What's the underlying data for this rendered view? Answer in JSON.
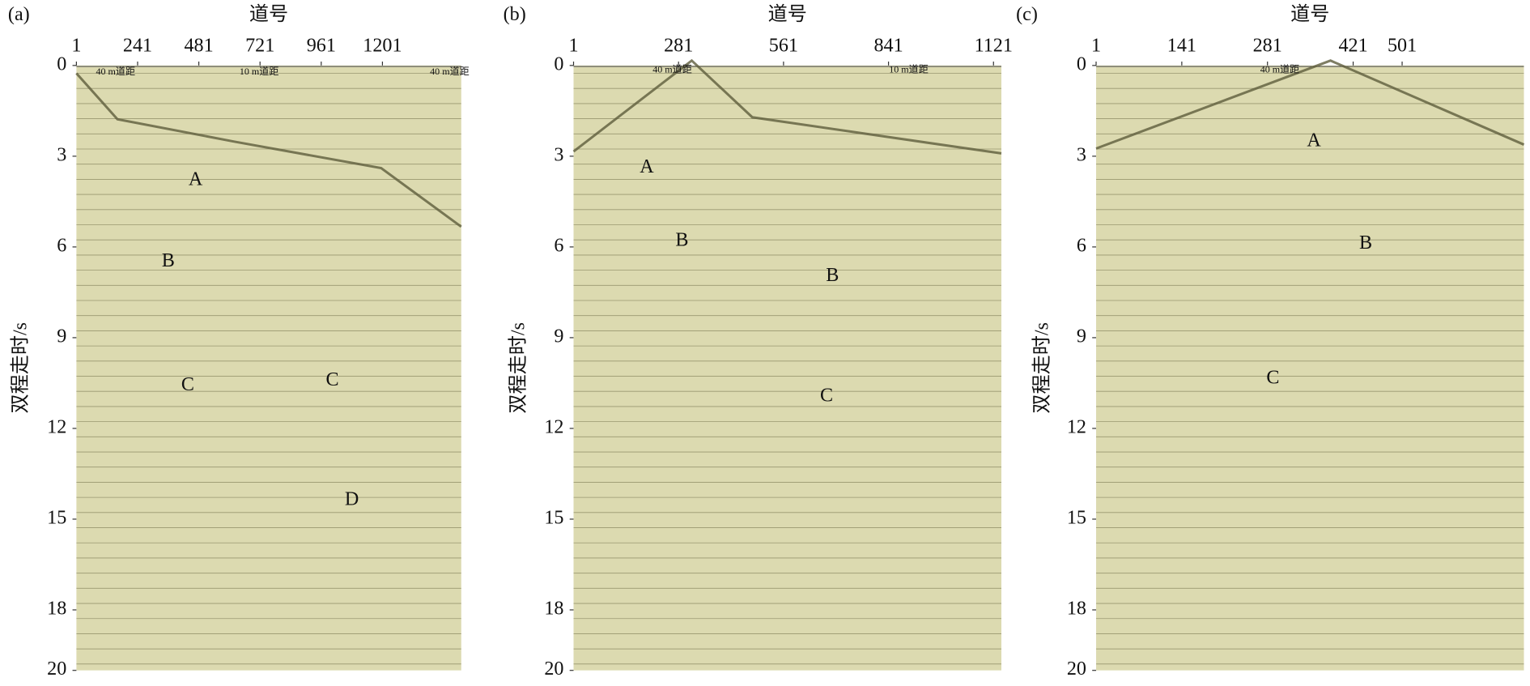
{
  "chart_data": [
    {
      "type": "seismic-section",
      "panel_label": "(a)",
      "xlabel": "道号",
      "ylabel": "双程走时/s",
      "xlim": [
        1,
        1510
      ],
      "xticks": [
        1,
        241,
        481,
        721,
        961,
        1201
      ],
      "ylim": [
        0,
        20
      ],
      "yticks": [
        0,
        3,
        6,
        9,
        12,
        15,
        18,
        20
      ],
      "distance_labels": [
        "40 m道距",
        "10 m道距",
        "40 m道距"
      ],
      "annotations": [
        "A",
        "B",
        "C",
        "C",
        "D"
      ]
    },
    {
      "type": "seismic-section",
      "panel_label": "(b)",
      "xlabel": "道号",
      "ylabel": "双程走时/s",
      "xlim": [
        1,
        1142
      ],
      "xticks": [
        1,
        281,
        561,
        841,
        1121
      ],
      "ylim": [
        0,
        20
      ],
      "yticks": [
        0,
        3,
        6,
        9,
        12,
        15,
        18,
        20
      ],
      "distance_labels": [
        "40 m道距",
        "10 m道距"
      ],
      "annotations": [
        "A",
        "B",
        "B",
        "C"
      ]
    },
    {
      "type": "seismic-section",
      "panel_label": "(c)",
      "xlabel": "道号",
      "ylabel": "双程走时/s",
      "xlim": [
        1,
        700
      ],
      "xticks": [
        1,
        141,
        281,
        421,
        501
      ],
      "ylim": [
        0,
        20
      ],
      "yticks": [
        0,
        3,
        6,
        9,
        12,
        15,
        18,
        20
      ],
      "distance_labels": [
        "40 m道距"
      ],
      "annotations": [
        "A",
        "B",
        "C"
      ]
    }
  ]
}
